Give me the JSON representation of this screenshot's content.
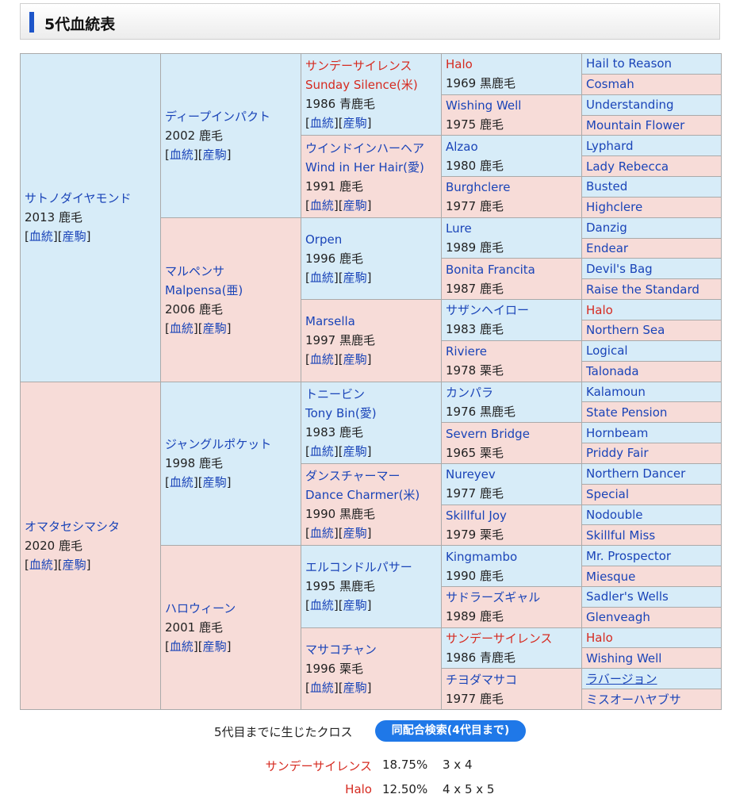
{
  "header": {
    "title": "5代血統表"
  },
  "link_labels": {
    "ketto": "血統",
    "sanku": "産駒"
  },
  "gen1": [
    {
      "name": "サトノダイヤモンド",
      "info": "2013 鹿毛"
    },
    {
      "name": "オマタセシマシタ",
      "info": "2020 鹿毛"
    }
  ],
  "gen2": [
    {
      "name": "ディープインパクト",
      "info": "2002 鹿毛"
    },
    {
      "name": "マルペンサ",
      "alt": "Malpensa(亜)",
      "info": "2006 鹿毛"
    },
    {
      "name": "ジャングルポケット",
      "info": "1998 鹿毛"
    },
    {
      "name": "ハロウィーン",
      "info": "2001 鹿毛"
    }
  ],
  "gen3": [
    {
      "name": "サンデーサイレンス",
      "alt": "Sunday Silence(米)",
      "info": "1986 青鹿毛",
      "cross": true
    },
    {
      "name": "ウインドインハーヘア",
      "alt": "Wind in Her Hair(愛)",
      "info": "1991 鹿毛"
    },
    {
      "name": "Orpen",
      "info": "1996 鹿毛"
    },
    {
      "name": "Marsella",
      "info": "1997 黒鹿毛"
    },
    {
      "name": "トニービン",
      "alt": "Tony Bin(愛)",
      "info": "1983 鹿毛"
    },
    {
      "name": "ダンスチャーマー",
      "alt": "Dance Charmer(米)",
      "info": "1990 黒鹿毛"
    },
    {
      "name": "エルコンドルパサー",
      "info": "1995 黒鹿毛"
    },
    {
      "name": "マサコチャン",
      "info": "1996 栗毛"
    }
  ],
  "gen4": [
    {
      "name": "Halo",
      "info": "1969 黒鹿毛",
      "cross": true
    },
    {
      "name": "Wishing Well",
      "info": "1975 鹿毛"
    },
    {
      "name": "Alzao",
      "info": "1980 鹿毛"
    },
    {
      "name": "Burghclere",
      "info": "1977 鹿毛"
    },
    {
      "name": "Lure",
      "info": "1989 鹿毛"
    },
    {
      "name": "Bonita Francita",
      "info": "1987 鹿毛"
    },
    {
      "name": "サザンヘイロー",
      "info": "1983 鹿毛"
    },
    {
      "name": "Riviere",
      "info": "1978 栗毛"
    },
    {
      "name": "カンパラ",
      "info": "1976 黒鹿毛"
    },
    {
      "name": "Severn Bridge",
      "info": "1965 栗毛"
    },
    {
      "name": "Nureyev",
      "info": "1977 鹿毛"
    },
    {
      "name": "Skillful Joy",
      "info": "1979 栗毛"
    },
    {
      "name": "Kingmambo",
      "info": "1990 鹿毛"
    },
    {
      "name": "サドラーズギャル",
      "info": "1989 鹿毛"
    },
    {
      "name": "サンデーサイレンス",
      "info": "1986 青鹿毛",
      "cross": true
    },
    {
      "name": "チヨダマサコ",
      "info": "1977 鹿毛"
    }
  ],
  "gen5": [
    {
      "name": "Hail to Reason"
    },
    {
      "name": "Cosmah"
    },
    {
      "name": "Understanding"
    },
    {
      "name": "Mountain Flower"
    },
    {
      "name": "Lyphard"
    },
    {
      "name": "Lady Rebecca"
    },
    {
      "name": "Busted"
    },
    {
      "name": "Highclere"
    },
    {
      "name": "Danzig"
    },
    {
      "name": "Endear"
    },
    {
      "name": "Devil's Bag"
    },
    {
      "name": "Raise the Standard"
    },
    {
      "name": "Halo",
      "cross": true
    },
    {
      "name": "Northern Sea"
    },
    {
      "name": "Logical"
    },
    {
      "name": "Talonada"
    },
    {
      "name": "Kalamoun"
    },
    {
      "name": "State Pension"
    },
    {
      "name": "Hornbeam"
    },
    {
      "name": "Priddy Fair"
    },
    {
      "name": "Northern Dancer"
    },
    {
      "name": "Special"
    },
    {
      "name": "Nodouble"
    },
    {
      "name": "Skillful Miss"
    },
    {
      "name": "Mr. Prospector"
    },
    {
      "name": "Miesque"
    },
    {
      "name": "Sadler's Wells"
    },
    {
      "name": "Glenveagh"
    },
    {
      "name": "Halo",
      "cross": true
    },
    {
      "name": "Wishing Well"
    },
    {
      "name": "ラバージョン",
      "underline": true
    },
    {
      "name": "ミスオーハヤブサ"
    }
  ],
  "crosses": {
    "title": "5代目までに生じたクロス",
    "search_button": "同配合検索(4代目まで)",
    "rows": [
      {
        "name": "サンデーサイレンス",
        "percent": "18.75%",
        "gens": "3 x 4"
      },
      {
        "name": "Halo",
        "percent": "12.50%",
        "gens": "4 x 5 x 5"
      }
    ]
  },
  "colors": {
    "sire_bg": "#d7ecf8",
    "dam_bg": "#f7dcd8",
    "link": "#1a44b8",
    "cross": "#d62a20",
    "accent": "#1d55c9"
  }
}
